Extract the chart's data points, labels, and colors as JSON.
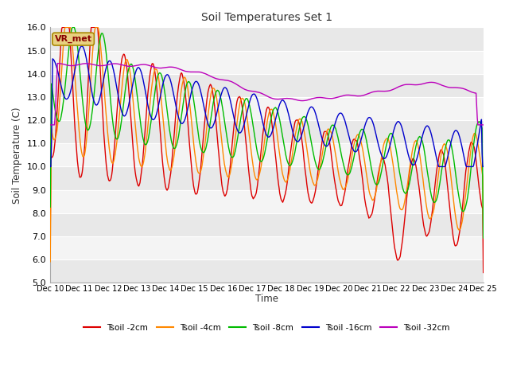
{
  "title": "Soil Temperatures Set 1",
  "ylabel": "Soil Temperature (C)",
  "xlabel": "Time",
  "ylim": [
    5.0,
    16.0
  ],
  "yticks": [
    5.0,
    6.0,
    7.0,
    8.0,
    9.0,
    10.0,
    11.0,
    12.0,
    13.0,
    14.0,
    15.0,
    16.0
  ],
  "line_colors": {
    "2cm": "#dd0000",
    "4cm": "#ff8800",
    "8cm": "#00bb00",
    "16cm": "#0000cc",
    "32cm": "#bb00bb"
  },
  "legend_labels": [
    "Tsoil -2cm",
    "Tsoil -4cm",
    "Tsoil -8cm",
    "Tsoil -16cm",
    "Tsoil -32cm"
  ],
  "vr_met_text": "VR_met",
  "num_days": 15,
  "start_day": 10
}
